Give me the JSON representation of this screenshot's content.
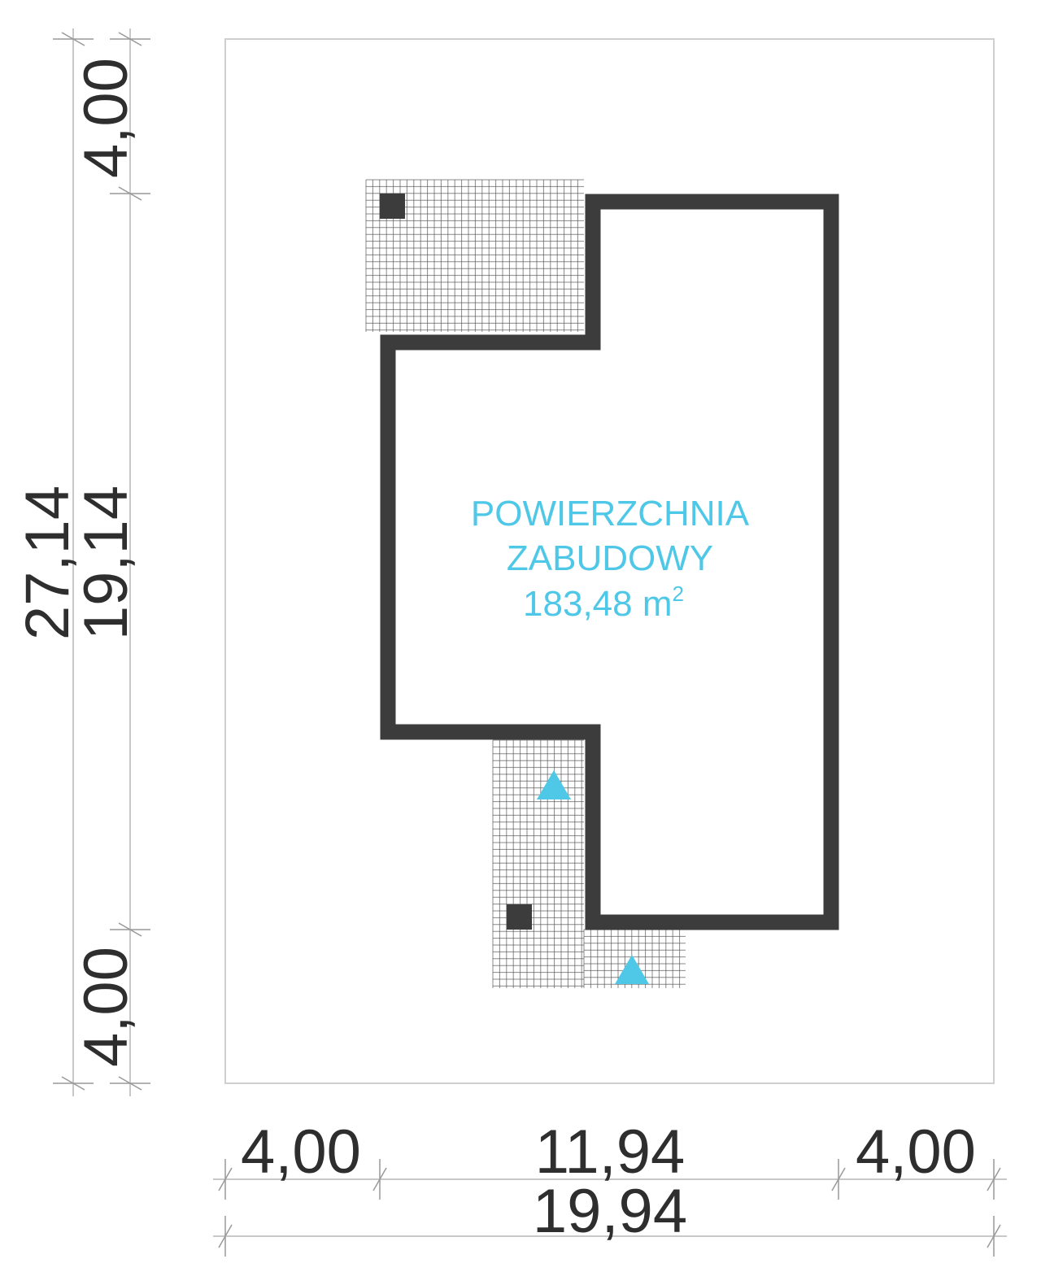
{
  "label": {
    "line1": "POWIERZCHNIA",
    "line2": "ZABUDOWY",
    "area": "183,48 m",
    "area_sup": "2"
  },
  "dimensions": {
    "left_top": "4,00",
    "left_total": "27,14",
    "left_building": "19,14",
    "left_bottom": "4,00",
    "bottom_left": "4,00",
    "bottom_building": "11,94",
    "bottom_right": "4,00",
    "bottom_total": "19,94"
  },
  "colors": {
    "wall": "#3c3c3c",
    "label": "#4fc8e8",
    "entrance_marker": "#4fc8e8",
    "grid": "#555555",
    "dimension_line": "#c8c8c8"
  }
}
